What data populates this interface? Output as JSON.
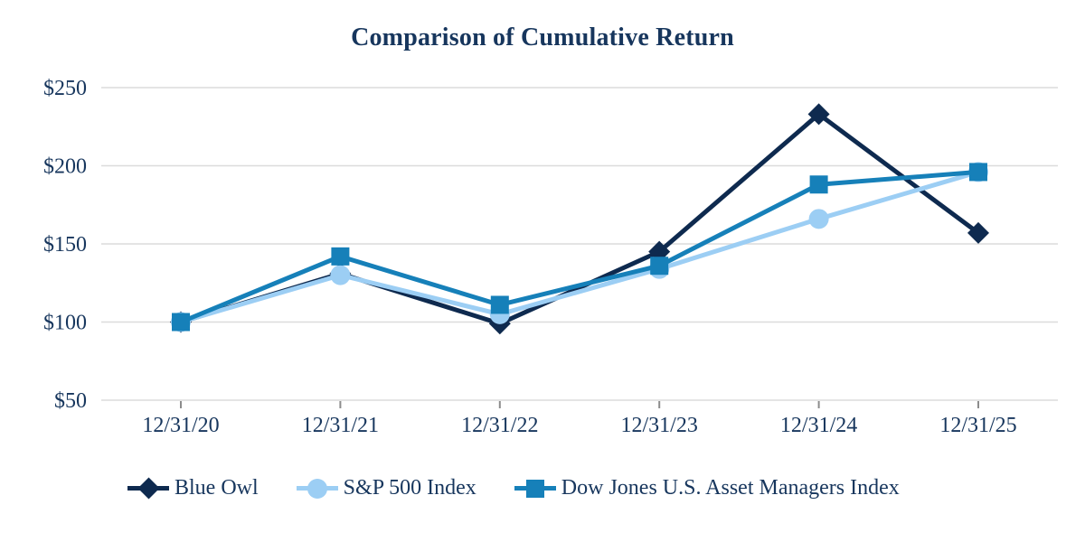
{
  "title": "Comparison of Cumulative Return",
  "colors": {
    "text_navy": "#17365D",
    "gridline": "#DCDCDC",
    "tick": "#8C8C8C",
    "background": "#FFFFFF",
    "blue_owl": "#0E2A4F",
    "sp500": "#9CCEF4",
    "dow_jones": "#1680B9"
  },
  "chart_data": {
    "type": "line",
    "title": "Comparison of Cumulative Return",
    "xlabel": "",
    "ylabel": "",
    "categories": [
      "12/31/20",
      "12/31/21",
      "12/31/22",
      "12/31/23",
      "12/31/24",
      "12/31/25"
    ],
    "series": [
      {
        "name": "Blue Owl",
        "marker": "diamond",
        "color": "#0E2A4F",
        "values": [
          100,
          131,
          99,
          145,
          233,
          157
        ]
      },
      {
        "name": "S&P 500 Index",
        "marker": "circle",
        "color": "#9CCEF4",
        "values": [
          100,
          130,
          105,
          134,
          166,
          196
        ]
      },
      {
        "name": "Dow Jones U.S. Asset Managers Index",
        "marker": "square",
        "color": "#1680B9",
        "values": [
          100,
          142,
          111,
          136,
          188,
          196
        ]
      }
    ],
    "y_ticks": [
      {
        "label": "$250",
        "value": 250
      },
      {
        "label": "$200",
        "value": 200
      },
      {
        "label": "$150",
        "value": 150
      },
      {
        "label": "$100",
        "value": 100
      },
      {
        "label": "$50",
        "value": 50
      }
    ],
    "ylim": [
      50,
      250
    ],
    "grid": "horizontal",
    "legend_position": "bottom"
  }
}
